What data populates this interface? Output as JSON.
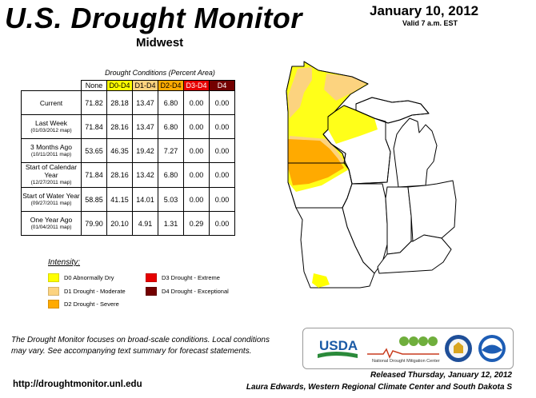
{
  "header": {
    "title": "U.S. Drought Monitor",
    "region": "Midwest",
    "date": "January 10, 2012",
    "valid": "Valid 7 a.m. EST"
  },
  "table": {
    "caption": "Drought Conditions (Percent Area)",
    "columns": [
      "None",
      "D0-D4",
      "D1-D4",
      "D2-D4",
      "D3-D4",
      "D4"
    ],
    "column_colors": [
      "#ffffff",
      "#ffff00",
      "#fcd37f",
      "#ffaa00",
      "#e60000",
      "#730000"
    ],
    "column_text_colors": [
      "#000000",
      "#000000",
      "#000000",
      "#000000",
      "#ffffff",
      "#ffffff"
    ],
    "rows": [
      {
        "label": "Current",
        "sub": "",
        "values": [
          "71.82",
          "28.18",
          "13.47",
          "6.80",
          "0.00",
          "0.00"
        ]
      },
      {
        "label": "Last Week",
        "sub": "(01/03/2012 map)",
        "values": [
          "71.84",
          "28.16",
          "13.47",
          "6.80",
          "0.00",
          "0.00"
        ]
      },
      {
        "label": "3 Months Ago",
        "sub": "(10/11/2011 map)",
        "values": [
          "53.65",
          "46.35",
          "19.42",
          "7.27",
          "0.00",
          "0.00"
        ]
      },
      {
        "label": "Start of Calendar Year",
        "sub": "(12/27/2011 map)",
        "values": [
          "71.84",
          "28.16",
          "13.42",
          "6.80",
          "0.00",
          "0.00"
        ]
      },
      {
        "label": "Start of Water Year",
        "sub": "(09/27/2011 map)",
        "values": [
          "58.85",
          "41.15",
          "14.01",
          "5.03",
          "0.00",
          "0.00"
        ]
      },
      {
        "label": "One Year Ago",
        "sub": "(01/04/2011 map)",
        "values": [
          "79.90",
          "20.10",
          "4.91",
          "1.31",
          "0.29",
          "0.00"
        ]
      }
    ]
  },
  "legend": {
    "heading": "Intensity:",
    "items": [
      {
        "label": "D0 Abnormally Dry",
        "color": "#ffff00"
      },
      {
        "label": "D1 Drought - Moderate",
        "color": "#fcd37f"
      },
      {
        "label": "D2 Drought - Severe",
        "color": "#ffaa00"
      },
      {
        "label": "D3 Drought - Extreme",
        "color": "#e60000"
      },
      {
        "label": "D4 Drought - Exceptional",
        "color": "#730000"
      }
    ]
  },
  "note": "The Drought Monitor focuses on broad-scale conditions. Local conditions may vary. See accompanying text summary for forecast statements.",
  "url": "http://droughtmonitor.unl.edu",
  "logos": {
    "usda": "USDA",
    "ndmc_line1": "National",
    "ndmc_line2": "Drought Mitigation Center"
  },
  "footer": {
    "released": "Released Thursday, January 12, 2012",
    "author": "Laura Edwards, Western Regional Climate Center and South Dakota S"
  }
}
